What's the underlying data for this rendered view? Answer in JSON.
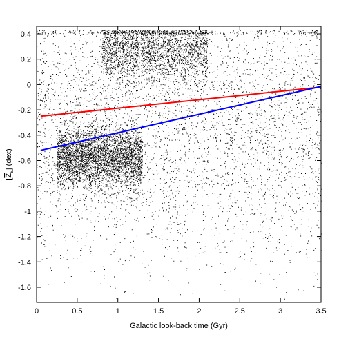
{
  "chart_data": {
    "type": "scatter",
    "title": "",
    "xlabel": "Galactic look-back time (Gyr)",
    "ylabel": "[Z̄a] (dex)",
    "ylabel_parts": {
      "bracket_open": "[",
      "var": "Z",
      "sub": "a",
      "bracket_close": "]",
      "unit": " (dex)"
    },
    "xlim": [
      0,
      3.5
    ],
    "ylim": [
      -1.72,
      0.46
    ],
    "xticks": [
      {
        "value": 0,
        "label": "0"
      },
      {
        "value": 0.5,
        "label": "0.5"
      },
      {
        "value": 1,
        "label": "1"
      },
      {
        "value": 1.5,
        "label": "1.5"
      },
      {
        "value": 2,
        "label": "2"
      },
      {
        "value": 2.5,
        "label": "2.5"
      },
      {
        "value": 3,
        "label": "3"
      },
      {
        "value": 3.5,
        "label": "3.5"
      }
    ],
    "yticks": [
      {
        "value": 0.4,
        "label": "0.4"
      },
      {
        "value": 0.2,
        "label": "0.2"
      },
      {
        "value": 0,
        "label": "0"
      },
      {
        "value": -0.2,
        "label": "-0.2"
      },
      {
        "value": -0.4,
        "label": "-0.4"
      },
      {
        "value": -0.6,
        "label": "-0.6"
      },
      {
        "value": -0.8,
        "label": "-0.8"
      },
      {
        "value": -1,
        "label": "-1"
      },
      {
        "value": -1.2,
        "label": "-1.2"
      },
      {
        "value": -1.4,
        "label": "-1.4"
      },
      {
        "value": -1.6,
        "label": "-1.6"
      }
    ],
    "grid": false,
    "legend": "none",
    "scatter_color": "#000000",
    "point_density_regions": [
      {
        "x_range": [
          0.25,
          1.3
        ],
        "y_center": -0.58,
        "y_spread": 0.12,
        "weight": 0.32
      },
      {
        "x_range": [
          0.8,
          2.1
        ],
        "y_center": 0.28,
        "y_spread": 0.12,
        "weight": 0.2
      },
      {
        "x_range": [
          0.0,
          3.5
        ],
        "y_center": -0.15,
        "y_spread": 0.4,
        "weight": 0.38
      },
      {
        "x_range": [
          0.0,
          3.5
        ],
        "y_center": -0.9,
        "y_spread": 0.35,
        "weight": 0.1
      }
    ],
    "y_cap": 0.43,
    "fit_lines": [
      {
        "color": "#ff0000",
        "x": [
          0.05,
          3.5
        ],
        "y": [
          -0.25,
          -0.02
        ]
      },
      {
        "color": "#0000ff",
        "x": [
          0.05,
          3.5
        ],
        "y": [
          -0.52,
          -0.015
        ]
      }
    ]
  }
}
